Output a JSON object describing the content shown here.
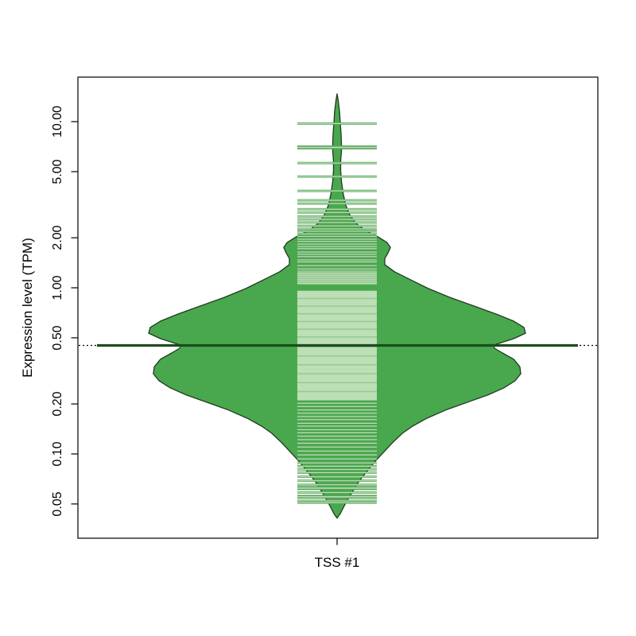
{
  "chart_data": {
    "type": "violin",
    "style": "beanplot",
    "title": "",
    "xlabel": "",
    "ylabel": "Expression level (TPM)",
    "x_categories": [
      "TSS #1"
    ],
    "y_scale": "log10",
    "y_tick_labels": [
      "0.05",
      "0.10",
      "0.20",
      "0.50",
      "1.00",
      "2.00",
      "5.00",
      "10.00"
    ],
    "y_tick_values": [
      0.05,
      0.1,
      0.2,
      0.5,
      1.0,
      2.0,
      5.0,
      10.0
    ],
    "y_data_range_tpm": [
      0.041,
      14.7
    ],
    "overall_average_tpm": 0.45,
    "violin_profile": [
      [
        14.7,
        0
      ],
      [
        13.4,
        0.006
      ],
      [
        11.5,
        0.013
      ],
      [
        9.77,
        0.017
      ],
      [
        8.46,
        0.021
      ],
      [
        7.4,
        0.023
      ],
      [
        6.64,
        0.023
      ],
      [
        5.81,
        0.019
      ],
      [
        5.08,
        0.019
      ],
      [
        4.37,
        0.023
      ],
      [
        3.7,
        0.032
      ],
      [
        3.14,
        0.046
      ],
      [
        2.74,
        0.068
      ],
      [
        2.44,
        0.101
      ],
      [
        2.21,
        0.152
      ],
      [
        2.02,
        0.219
      ],
      [
        1.87,
        0.266
      ],
      [
        1.75,
        0.283
      ],
      [
        1.62,
        0.27
      ],
      [
        1.5,
        0.253
      ],
      [
        1.38,
        0.253
      ],
      [
        1.25,
        0.304
      ],
      [
        1.12,
        0.388
      ],
      [
        0.989,
        0.485
      ],
      [
        0.875,
        0.599
      ],
      [
        0.777,
        0.726
      ],
      [
        0.695,
        0.844
      ],
      [
        0.63,
        0.937
      ],
      [
        0.577,
        0.992
      ],
      [
        0.533,
        1.0
      ],
      [
        0.494,
        0.937
      ],
      [
        0.467,
        0.869
      ],
      [
        0.452,
        0.831
      ],
      [
        0.433,
        0.835
      ],
      [
        0.405,
        0.878
      ],
      [
        0.372,
        0.937
      ],
      [
        0.335,
        0.97
      ],
      [
        0.304,
        0.975
      ],
      [
        0.276,
        0.945
      ],
      [
        0.25,
        0.886
      ],
      [
        0.227,
        0.802
      ],
      [
        0.204,
        0.688
      ],
      [
        0.185,
        0.582
      ],
      [
        0.164,
        0.477
      ],
      [
        0.147,
        0.401
      ],
      [
        0.133,
        0.346
      ],
      [
        0.117,
        0.295
      ],
      [
        0.103,
        0.249
      ],
      [
        0.0917,
        0.207
      ],
      [
        0.0813,
        0.169
      ],
      [
        0.0729,
        0.135
      ],
      [
        0.0656,
        0.105
      ],
      [
        0.0588,
        0.08
      ],
      [
        0.0528,
        0.055
      ],
      [
        0.0478,
        0.034
      ],
      [
        0.0437,
        0.017
      ],
      [
        0.0411,
        0
      ]
    ],
    "beanlines": {
      "values": [
        9.74,
        5.63,
        4.67,
        3.83,
        3.36,
        3.21,
        2.97,
        2.84,
        2.69,
        2.58,
        2.47,
        2.36,
        2.26,
        2.19,
        2.11,
        2.04,
        1.96,
        1.9,
        1.83,
        1.77,
        1.72,
        1.64,
        1.59,
        1.54,
        1.47,
        1.43,
        1.36,
        1.3,
        1.26,
        0.202,
        0.193,
        0.184,
        0.176,
        0.168,
        0.161,
        0.153,
        0.147,
        0.14,
        0.134,
        0.128,
        0.122,
        0.116,
        0.11,
        0.104,
        0.0987,
        0.0934,
        0.0883,
        0.0844,
        0.0807,
        0.0772,
        0.0729,
        0.069,
        0.0652,
        0.0586,
        0.0522,
        0.0509
      ],
      "thick_values": [
        7.0,
        0.0623,
        0.0552
      ],
      "dense_bands": [
        {
          "from": 1.24,
          "to": 1.05,
          "stripes": 5
        },
        {
          "from": 0.96,
          "to": 0.455,
          "stripes": 6
        },
        {
          "from": 0.44,
          "to": 0.21,
          "stripes": 5
        }
      ]
    },
    "colors": {
      "violin_fill": "#49a84d",
      "violin_border": "#203a22",
      "beanline_light": "#bcdfb6",
      "beanline_edge": "#55a458",
      "average_line": "#1c4c1e",
      "overall_dotted_line": "#000000",
      "axis": "#000000"
    },
    "legend": null,
    "grid": false
  }
}
